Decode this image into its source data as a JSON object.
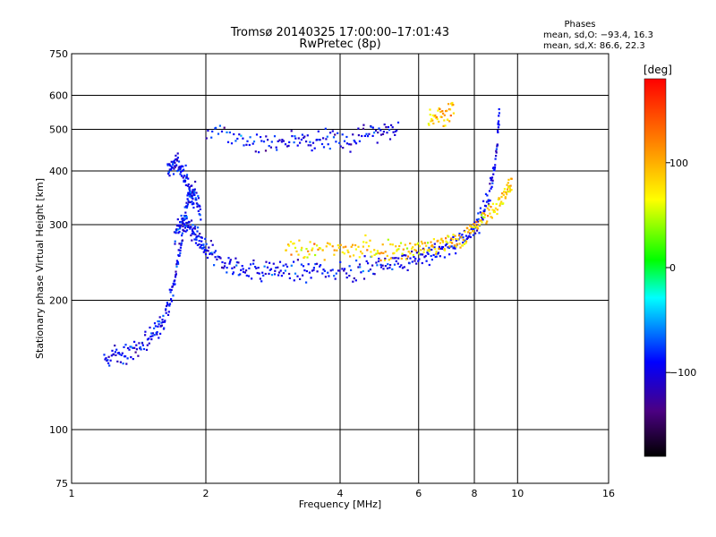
{
  "chart_data": {
    "type": "scatter",
    "title": "Tromsø 20140325 17:00:00–17:01:43",
    "subtitle": "RwPretec (8p)",
    "xlabel": "Frequency [MHz]",
    "ylabel": "Stationary phase Virtual Height [km]",
    "xscale": "log2",
    "yscale": "log",
    "xlim": [
      1,
      16
    ],
    "ylim": [
      75,
      750
    ],
    "xticks": [
      1,
      2,
      4,
      6,
      8,
      10,
      16
    ],
    "xtick_labels": [
      "1",
      "2",
      "4",
      "6",
      "8",
      "10",
      "16"
    ],
    "yticks": [
      75,
      100,
      200,
      300,
      400,
      500,
      600,
      750
    ],
    "ytick_labels": [
      "75",
      "100",
      "200",
      "300",
      "400",
      "500",
      "600",
      "750"
    ],
    "grid": true,
    "stats": {
      "heading": "Phases",
      "line1": "mean, sd,O: −93.4, 16.3",
      "line2": "mean, sd,X:  86.6, 22.3"
    },
    "colorbar": {
      "label": "[deg]",
      "range": [
        -180,
        180
      ],
      "ticks": [
        100,
        0,
        -100
      ],
      "tick_labels": [
        "100",
        "0",
        "−100"
      ]
    },
    "series": [
      {
        "mode": "O",
        "phase_mean": -93.4,
        "phase_sd": 16.3,
        "segments": [
          {
            "x": [
              1.18,
              1.25,
              1.32,
              1.4,
              1.48,
              1.55,
              1.6,
              1.65,
              1.7,
              1.74,
              1.78,
              1.82,
              1.86,
              1.9,
              1.95
            ],
            "y": [
              145,
              148,
              150,
              155,
              162,
              170,
              180,
              195,
              220,
              255,
              300,
              340,
              360,
              350,
              320
            ]
          },
          {
            "x": [
              1.7,
              1.74,
              1.78,
              1.82,
              1.86,
              1.9,
              1.95,
              2.0,
              2.1,
              2.25,
              2.4,
              2.6,
              2.8,
              3.0,
              3.3,
              3.6,
              4.0,
              4.4,
              4.8,
              5.2,
              5.6,
              6.0,
              6.4,
              6.8,
              7.2,
              7.6,
              8.0,
              8.3,
              8.6,
              8.8,
              9.0,
              9.1
            ],
            "y": [
              280,
              300,
              310,
              300,
              290,
              280,
              270,
              262,
              250,
              242,
              238,
              236,
              235,
              234,
              234,
              235,
              236,
              238,
              241,
              244,
              248,
              252,
              256,
              262,
              270,
              280,
              295,
              315,
              345,
              390,
              460,
              560
            ]
          },
          {
            "x": [
              2.0,
              2.3,
              2.6,
              2.9,
              3.2,
              3.5,
              3.8,
              4.2,
              4.6,
              5.0,
              5.4
            ],
            "y": [
              505,
              480,
              470,
              466,
              466,
              470,
              475,
              482,
              490,
              498,
              505
            ]
          },
          {
            "x": [
              1.64,
              1.68,
              1.72,
              1.76,
              1.8,
              1.84,
              1.88
            ],
            "y": [
              400,
              410,
              420,
              400,
              380,
              360,
              340
            ]
          }
        ]
      },
      {
        "mode": "X",
        "phase_mean": 86.6,
        "phase_sd": 22.3,
        "segments": [
          {
            "x": [
              3.0,
              3.3,
              3.6,
              4.0,
              4.4,
              4.8,
              5.2,
              5.6,
              6.0,
              6.4,
              6.8,
              7.2,
              7.6,
              8.0,
              8.4,
              8.8,
              9.2,
              9.5,
              9.7
            ],
            "y": [
              258,
              262,
              262,
              262,
              262,
              262,
              262,
              262,
              262,
              266,
              270,
              276,
              284,
              295,
              310,
              325,
              340,
              360,
              380
            ]
          },
          {
            "x": [
              6.3,
              6.6,
              6.9,
              7.2
            ],
            "y": [
              530,
              540,
              550,
              560
            ]
          }
        ]
      }
    ]
  }
}
